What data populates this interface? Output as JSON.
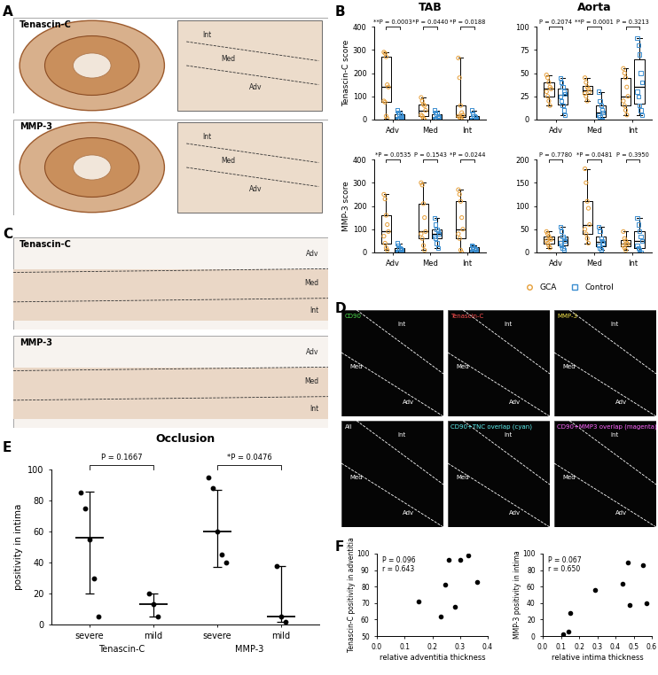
{
  "panel_letters": [
    "A",
    "B",
    "C",
    "D",
    "E",
    "F"
  ],
  "images": [
    {
      "tiles": [
        {
          "label": "Tenascin-C",
          "layers": [
            "Int",
            "Med",
            "Adv"
          ]
        },
        {
          "label": "MMP-3",
          "layers": [
            "Int",
            "Med",
            "Adv"
          ]
        }
      ]
    },
    {
      "tiles": [
        {
          "label": "Tenascin-C",
          "layers": [
            "Adv",
            "Med",
            "Int"
          ]
        },
        {
          "label": "MMP-3",
          "layers": [
            "Adv",
            "Med",
            "Int"
          ]
        }
      ]
    },
    {
      "tiles": [
        {
          "label": "CD90",
          "layers": [
            "Int",
            "Med",
            "Adv"
          ]
        },
        {
          "label": "Tenascin-C",
          "layers": [
            "Int",
            "Med",
            "Adv"
          ]
        },
        {
          "label": "MMP-3",
          "layers": [
            "Int",
            "Med",
            "Adv"
          ]
        },
        {
          "label": "All",
          "layers": [
            "Int",
            "Med",
            "Adv"
          ]
        },
        {
          "label": "CD90+TNC overlap (cyan)",
          "layers": [
            "Int",
            "Med",
            "Adv"
          ]
        },
        {
          "label": "CD90+MMP3 overlap (magenta)",
          "layers": [
            "Int",
            "Med",
            "Adv"
          ]
        }
      ]
    }
  ],
  "chart_data": [
    {
      "type": "box",
      "title": "TAB",
      "y_label": "Tenascin-C score",
      "categories": [
        "Adv",
        "Med",
        "Int"
      ],
      "ylim": [
        0,
        400
      ],
      "yticks": [
        0,
        100,
        200,
        300,
        400
      ],
      "p_values": [
        "**P = 0.0003",
        "*P = 0.0440",
        "*P = 0.0188"
      ],
      "series": [
        {
          "name": "GCA",
          "color": "#e69f3a",
          "marker": "circle",
          "values": [
            [
              290,
              285,
              270,
              150,
              140,
              80,
              75,
              15,
              5
            ],
            [
              95,
              80,
              65,
              60,
              40,
              20,
              15,
              5,
              0
            ],
            [
              265,
              180,
              60,
              30,
              20,
              15,
              10,
              5,
              0
            ]
          ]
        },
        {
          "name": "Control",
          "color": "#3b8ed0",
          "marker": "square",
          "values": [
            [
              40,
              30,
              25,
              20,
              10,
              5,
              0,
              0,
              0,
              0
            ],
            [
              40,
              30,
              25,
              15,
              10,
              5,
              0,
              0,
              0,
              0
            ],
            [
              40,
              25,
              15,
              10,
              5,
              0,
              0,
              0,
              0,
              0
            ]
          ]
        }
      ]
    },
    {
      "type": "box",
      "title": "Aorta",
      "categories": [
        "Adv",
        "Med",
        "Int"
      ],
      "ylim": [
        0,
        100
      ],
      "yticks": [
        0,
        25,
        50,
        75,
        100
      ],
      "p_values": [
        "P = 0.2074",
        "**P = 0.0001",
        "P = 0.3213"
      ],
      "series": [
        {
          "name": "GCA",
          "color": "#e69f3a",
          "marker": "circle",
          "values": [
            [
              48,
              45,
              40,
              35,
              33,
              30,
              25,
              20,
              15
            ],
            [
              45,
              40,
              35,
              33,
              30,
              28,
              25,
              20
            ],
            [
              55,
              50,
              45,
              35,
              25,
              20,
              15,
              10,
              5
            ]
          ]
        },
        {
          "name": "Control",
          "color": "#3b8ed0",
          "marker": "square",
          "values": [
            [
              45,
              40,
              35,
              30,
              28,
              25,
              20,
              15,
              10,
              5
            ],
            [
              30,
              20,
              15,
              10,
              8,
              5,
              3,
              0,
              0
            ],
            [
              88,
              80,
              70,
              50,
              40,
              30,
              25,
              15,
              10,
              5
            ]
          ]
        }
      ]
    },
    {
      "type": "box",
      "y_label": "MMP-3 score",
      "categories": [
        "Adv",
        "Med",
        "Int"
      ],
      "ylim": [
        0,
        400
      ],
      "yticks": [
        0,
        100,
        200,
        300,
        400
      ],
      "p_values": [
        "*P = 0.0535",
        "P = 0.1543",
        "*P = 0.0244"
      ],
      "series": [
        {
          "name": "GCA",
          "color": "#e69f3a",
          "marker": "circle",
          "values": [
            [
              250,
              230,
              160,
              120,
              90,
              70,
              40,
              20,
              10
            ],
            [
              300,
              290,
              210,
              150,
              90,
              80,
              60,
              30,
              10
            ],
            [
              270,
              250,
              220,
              150,
              100,
              80,
              60,
              10,
              0
            ]
          ]
        },
        {
          "name": "Control",
          "color": "#3b8ed0",
          "marker": "square",
          "values": [
            [
              40,
              30,
              20,
              15,
              10,
              5,
              5,
              0,
              0
            ],
            [
              150,
              120,
              100,
              90,
              80,
              70,
              60,
              40,
              20
            ],
            [
              30,
              25,
              20,
              15,
              10,
              5,
              0,
              0
            ]
          ]
        }
      ]
    },
    {
      "type": "box",
      "legend": "lower center",
      "categories": [
        "Adv",
        "Med",
        "Int"
      ],
      "ylim": [
        0,
        200
      ],
      "yticks": [
        0,
        50,
        100,
        150,
        200
      ],
      "p_values": [
        "P = 0.7780",
        "*P = 0.0481",
        "P = 0.3950"
      ],
      "series": [
        {
          "name": "GCA",
          "color": "#e69f3a",
          "marker": "circle",
          "values": [
            [
              45,
              40,
              35,
              30,
              28,
              25,
              20,
              15,
              10
            ],
            [
              180,
              150,
              110,
              95,
              60,
              50,
              40,
              30,
              20
            ],
            [
              45,
              30,
              25,
              20,
              18,
              15,
              10,
              5
            ]
          ]
        },
        {
          "name": "Control",
          "color": "#3b8ed0",
          "marker": "square",
          "values": [
            [
              55,
              45,
              35,
              30,
              25,
              20,
              15,
              10,
              5
            ],
            [
              55,
              45,
              30,
              25,
              20,
              15,
              10,
              5
            ],
            [
              75,
              60,
              45,
              35,
              25,
              15,
              10,
              5,
              0
            ]
          ]
        }
      ]
    },
    {
      "type": "dot",
      "title": "Occlusion",
      "y_label": "positivity in intima",
      "categories": [
        "severe",
        "mild",
        "severe",
        "mild"
      ],
      "groups": [
        "Tenascin-C",
        "MMP-3"
      ],
      "ylim": [
        0,
        100
      ],
      "yticks": [
        0,
        20,
        40,
        60,
        80,
        100
      ],
      "color": "#000000",
      "values": [
        [
          85,
          75,
          55,
          30,
          5
        ],
        [
          20,
          13,
          5
        ],
        [
          95,
          88,
          60,
          45,
          40
        ],
        [
          38,
          5,
          2
        ]
      ],
      "median": [
        56,
        13,
        60,
        5
      ],
      "lower": [
        20,
        5,
        37,
        2
      ],
      "upper": [
        86,
        20,
        87,
        38
      ],
      "p_values": [
        "P = 0.1667",
        "*P = 0.0476"
      ]
    },
    {
      "type": "scatter",
      "x_label": "relative adventitia thickness",
      "y_label": "Tenascin-C positivity in adventitia",
      "x": [
        0.15,
        0.23,
        0.245,
        0.26,
        0.28,
        0.3,
        0.33,
        0.36
      ],
      "values": [
        71,
        62,
        81,
        96,
        68,
        96,
        99,
        83
      ],
      "xlim": [
        0.0,
        0.4
      ],
      "xticks": [
        0.0,
        0.1,
        0.2,
        0.3,
        0.4
      ],
      "ylim": [
        50,
        100
      ],
      "yticks": [
        50,
        60,
        70,
        80,
        90,
        100
      ],
      "color": "#000000",
      "annotations": [
        "P = 0.096",
        "r = 0.643"
      ]
    },
    {
      "type": "scatter",
      "x_label": "relative intima thickness",
      "y_label": "MMP-3 positivity in intima",
      "x": [
        0.11,
        0.14,
        0.15,
        0.29,
        0.44,
        0.47,
        0.48,
        0.55,
        0.57
      ],
      "values": [
        2,
        5,
        28,
        56,
        63,
        89,
        38,
        86,
        40
      ],
      "xlim": [
        0.0,
        0.6
      ],
      "xticks": [
        0.0,
        0.1,
        0.2,
        0.3,
        0.4,
        0.5,
        0.6
      ],
      "ylim": [
        0,
        100
      ],
      "yticks": [
        0,
        20,
        40,
        60,
        80,
        100
      ],
      "color": "#000000",
      "annotations": [
        "P = 0.067",
        "r = 0.650"
      ]
    }
  ]
}
